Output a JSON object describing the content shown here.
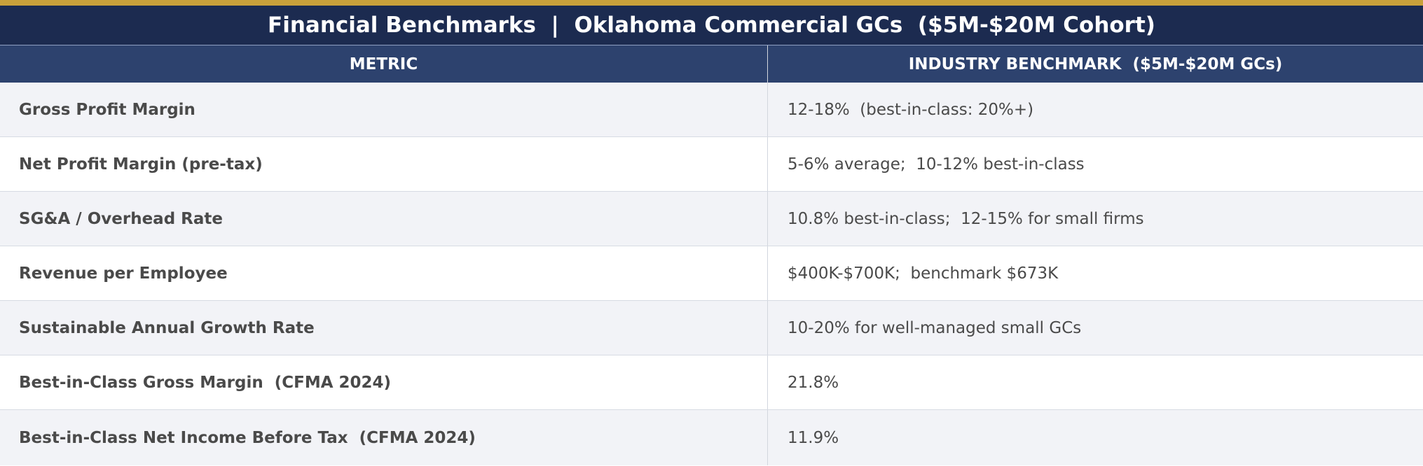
{
  "title": "Financial Benchmarks  |  Oklahoma Commercial GCs  ($5M-$20M Cohort)",
  "columns": {
    "metric": "METRIC",
    "benchmark": "INDUSTRY BENCHMARK  ($5M-$20M GCs)"
  },
  "rows": [
    {
      "metric": "Gross Profit Margin",
      "benchmark": "12-18%  (best-in-class: 20%+)"
    },
    {
      "metric": "Net Profit Margin (pre-tax)",
      "benchmark": "5-6% average;  10-12% best-in-class"
    },
    {
      "metric": "SG&A / Overhead Rate",
      "benchmark": "10.8% best-in-class;  12-15% for small firms"
    },
    {
      "metric": "Revenue per Employee",
      "benchmark": "$400K-$700K;  benchmark $673K"
    },
    {
      "metric": "Sustainable Annual Growth Rate",
      "benchmark": "10-20% for well-managed small GCs"
    },
    {
      "metric": "Best-in-Class Gross Margin  (CFMA 2024)",
      "benchmark": "21.8%"
    },
    {
      "metric": "Best-in-Class Net Income Before Tax  (CFMA 2024)",
      "benchmark": "11.9%"
    }
  ],
  "colors": {
    "accent_gold": "#c9a13b",
    "title_bg": "#1c2b50",
    "header_bg": "#2d426e",
    "row_alt_bg": "#f2f3f7"
  }
}
